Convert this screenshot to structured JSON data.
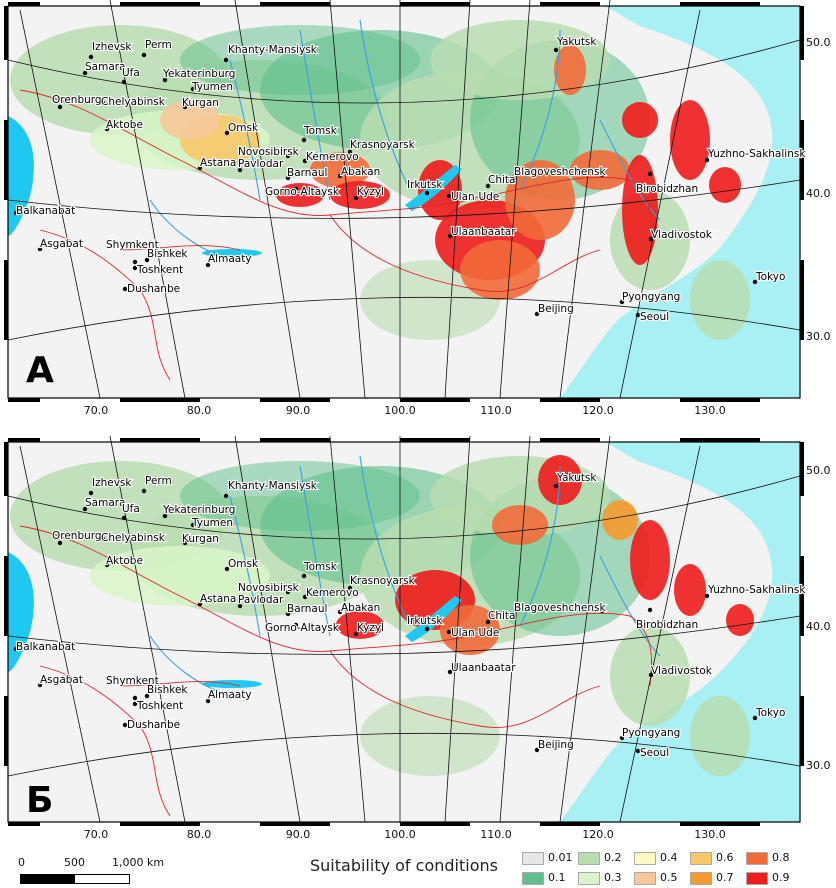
{
  "panels": [
    {
      "id": "A",
      "label": "А",
      "lat_ticks": [
        "50.0",
        "40.0",
        "30.0"
      ],
      "lon_ticks": [
        "70.0",
        "80.0",
        "90.0",
        "100.0",
        "110.0",
        "120.0",
        "130.0"
      ],
      "cities": [
        {
          "name": "Izhevsk"
        },
        {
          "name": "Perm"
        },
        {
          "name": "Khanty-Mansiysk"
        },
        {
          "name": "Samara"
        },
        {
          "name": "Ufa"
        },
        {
          "name": "Yekaterinburg"
        },
        {
          "name": "Tyumen"
        },
        {
          "name": "Orenburg"
        },
        {
          "name": "Chelyabinsk"
        },
        {
          "name": "Kurgan"
        },
        {
          "name": "Aktobe"
        },
        {
          "name": "Omsk"
        },
        {
          "name": "Tomsk"
        },
        {
          "name": "Krasnoyarsk"
        },
        {
          "name": "Novosibirsk"
        },
        {
          "name": "Kemerovo"
        },
        {
          "name": "Astana"
        },
        {
          "name": "Pavlodar"
        },
        {
          "name": "Barnaul"
        },
        {
          "name": "Abakan"
        },
        {
          "name": "Gorno-Altaysk"
        },
        {
          "name": "Kyzyl"
        },
        {
          "name": "Irkutsk"
        },
        {
          "name": "Ulan-Ude"
        },
        {
          "name": "Chita"
        },
        {
          "name": "Blagoveshchensk"
        },
        {
          "name": "Birobidzhan"
        },
        {
          "name": "Yakutsk"
        },
        {
          "name": "Yuzhno-Sakhalinsk"
        },
        {
          "name": "Vladivostok"
        },
        {
          "name": "Ulaanbaatar"
        },
        {
          "name": "Beijing"
        },
        {
          "name": "Pyongyang"
        },
        {
          "name": "Seoul"
        },
        {
          "name": "Tokyo"
        },
        {
          "name": "Balkanabat"
        },
        {
          "name": "Asgabat"
        },
        {
          "name": "Shymkent"
        },
        {
          "name": "Bishkek"
        },
        {
          "name": "Toshkent"
        },
        {
          "name": "Almaaty"
        },
        {
          "name": "Dushanbe"
        }
      ]
    },
    {
      "id": "B",
      "label": "Б",
      "lat_ticks": [
        "50.0",
        "40.0",
        "30.0"
      ],
      "lon_ticks": [
        "70.0",
        "80.0",
        "90.0",
        "100.0",
        "110.0",
        "120.0",
        "130.0"
      ],
      "cities": [
        {
          "name": "Izhevsk"
        },
        {
          "name": "Perm"
        },
        {
          "name": "Khanty-Mansiysk"
        },
        {
          "name": "Samara"
        },
        {
          "name": "Ufa"
        },
        {
          "name": "Yekaterinburg"
        },
        {
          "name": "Tyumen"
        },
        {
          "name": "Orenburg"
        },
        {
          "name": "Chelyabinsk"
        },
        {
          "name": "Kurgan"
        },
        {
          "name": "Aktobe"
        },
        {
          "name": "Omsk"
        },
        {
          "name": "Tomsk"
        },
        {
          "name": "Krasnoyarsk"
        },
        {
          "name": "Novosibirsk"
        },
        {
          "name": "Kemerovo"
        },
        {
          "name": "Astana"
        },
        {
          "name": "Pavlodar"
        },
        {
          "name": "Barnaul"
        },
        {
          "name": "Abakan"
        },
        {
          "name": "Gorno-Altaysk"
        },
        {
          "name": "Kyzyl"
        },
        {
          "name": "Irkutsk"
        },
        {
          "name": "Ulan-Ude"
        },
        {
          "name": "Chita"
        },
        {
          "name": "Blagoveshchensk"
        },
        {
          "name": "Birobidzhan"
        },
        {
          "name": "Yakutsk"
        },
        {
          "name": "Yuzhno-Sakhalinsk"
        },
        {
          "name": "Vladivostok"
        },
        {
          "name": "Ulaanbaatar"
        },
        {
          "name": "Beijing"
        },
        {
          "name": "Pyongyang"
        },
        {
          "name": "Seoul"
        },
        {
          "name": "Tokyo"
        },
        {
          "name": "Balkanabat"
        },
        {
          "name": "Asgabat"
        },
        {
          "name": "Shymkent"
        },
        {
          "name": "Bishkek"
        },
        {
          "name": "Toshkent"
        },
        {
          "name": "Almaaty"
        },
        {
          "name": "Dushanbe"
        }
      ]
    }
  ],
  "scale": {
    "label_0": "0",
    "label_500": "500",
    "label_1000": "1,000 km"
  },
  "legend": {
    "title": "Suitability of conditions",
    "items": [
      {
        "label": "0.01",
        "color": "#e6e6e6"
      },
      {
        "label": "0.1",
        "color": "#5fc08c"
      },
      {
        "label": "0.2",
        "color": "#b9dcb0"
      },
      {
        "label": "0.3",
        "color": "#d9f5c9"
      },
      {
        "label": "0.4",
        "color": "#fdf9c4"
      },
      {
        "label": "0.5",
        "color": "#f7c99a"
      },
      {
        "label": "0.6",
        "color": "#f8c868"
      },
      {
        "label": "0.7",
        "color": "#f59a2e"
      },
      {
        "label": "0.8",
        "color": "#f26a3a"
      },
      {
        "label": "0.9",
        "color": "#ee1c1c"
      }
    ]
  },
  "colors": {
    "sea": "#a9f0f5",
    "lake": "#1ec8f0",
    "border": "#e0242a",
    "river": "#3aa0e0",
    "graticule": "#111111"
  }
}
